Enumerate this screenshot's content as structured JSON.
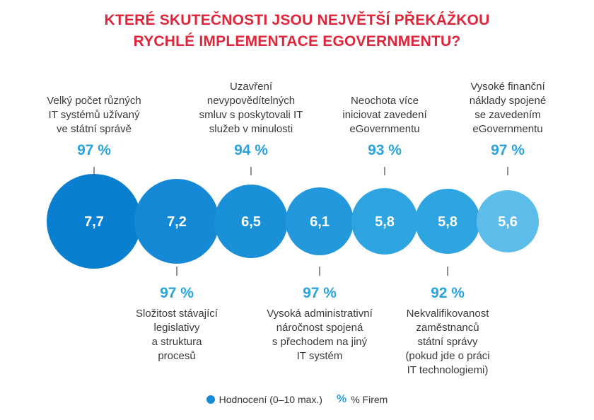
{
  "chart_data": {
    "type": "bubble",
    "title": [
      "KTERÉ SKUTEČNOSTI JSOU NEJVĚTŠÍ PŘEKÁŽKOU",
      "RYCHLÉ IMPLEMENTACE EGOVERNMENTU?"
    ],
    "items": [
      {
        "rating": "7,7",
        "value": 7.7,
        "percent": "97 %",
        "label": [
          "Velký počet různých",
          "IT systémů užívaný",
          "ve státní správě"
        ],
        "position": "top",
        "color": "#0a7fcf"
      },
      {
        "rating": "7,2",
        "value": 7.2,
        "percent": "97 %",
        "label": [
          "Složitost stávající",
          "legislativy",
          "a struktura",
          "procesů"
        ],
        "position": "bottom",
        "color": "#1589d5"
      },
      {
        "rating": "6,5",
        "value": 6.5,
        "percent": "94 %",
        "label": [
          "Uzavření",
          "nevypovědítelných",
          "smluv s poskytovali IT",
          "služeb v minulosti"
        ],
        "position": "top",
        "color": "#1a90d9"
      },
      {
        "rating": "6,1",
        "value": 6.1,
        "percent": "97 %",
        "label": [
          "Vysoká administrativní",
          "náročnost spojená",
          "s přechodem na jiný",
          "IT systém"
        ],
        "position": "bottom",
        "color": "#2398dc"
      },
      {
        "rating": "5,8",
        "value": 5.8,
        "percent": "93 %",
        "label": [
          "Neochota více",
          "iniciovat zavedení",
          "eGovernmentu"
        ],
        "position": "top",
        "color": "#2ea4e0"
      },
      {
        "rating": "5,8",
        "value": 5.8,
        "percent": "92 %",
        "label": [
          "Nekvalifikovanost",
          "zaměstnanců",
          "státní správy",
          "(pokud jde o práci",
          "IT technologiemi)"
        ],
        "position": "bottom",
        "color": "#2ea4e0"
      },
      {
        "rating": "5,6",
        "value": 5.6,
        "percent": "97 %",
        "label": [
          "Vysoké finanční",
          "náklady spojené",
          "se zavedením",
          "eGovernmentu"
        ],
        "position": "top",
        "color": "#5dbdea"
      }
    ],
    "legend": {
      "rating_label": "Hodnocení (0–10 max.)",
      "percent_symbol": "%",
      "percent_label": "% Firem"
    }
  }
}
